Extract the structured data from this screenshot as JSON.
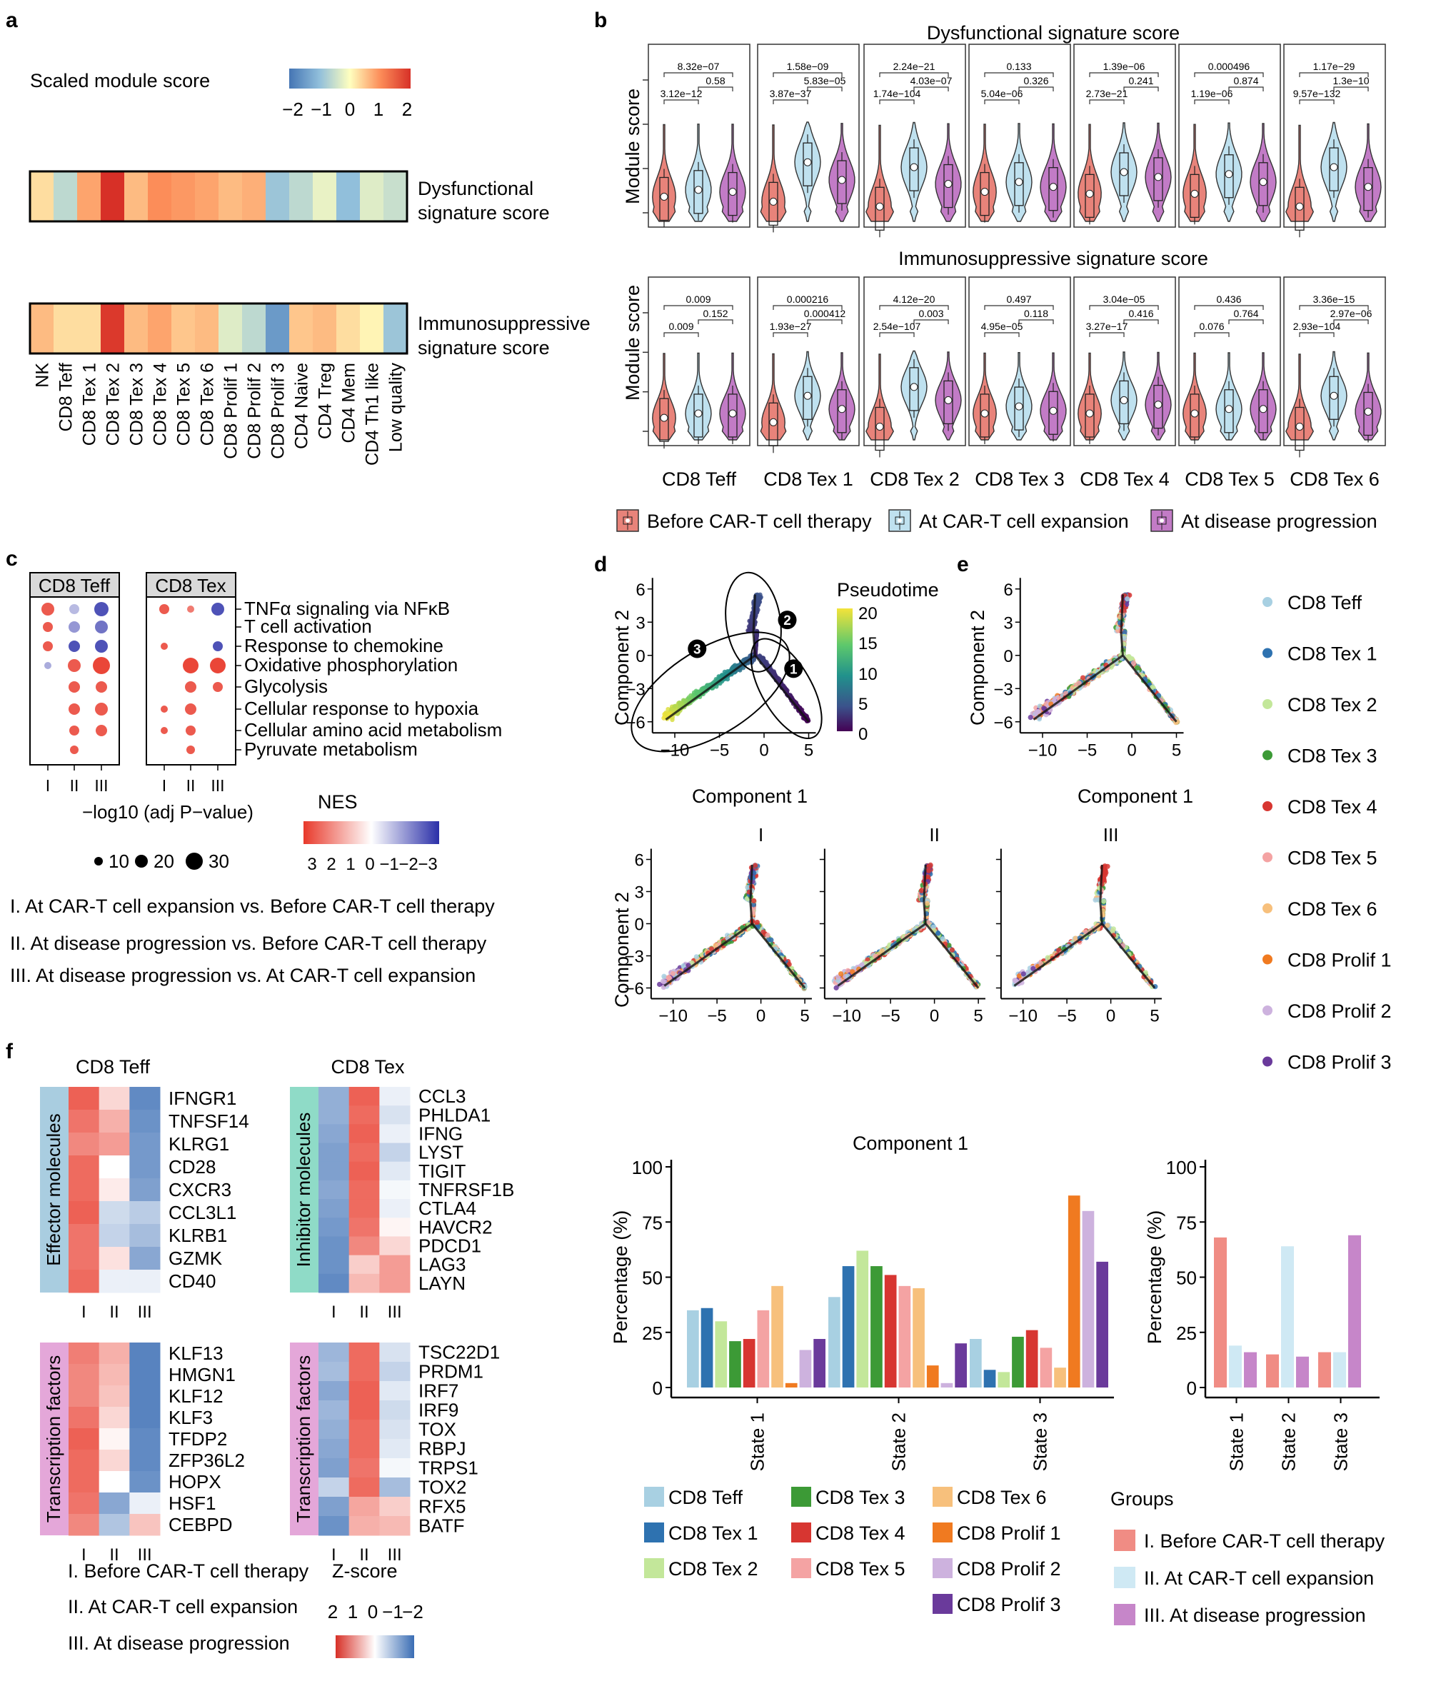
{
  "panel_letters": {
    "a": "a",
    "b": "b",
    "c": "c",
    "d": "d",
    "e": "e",
    "f": "f"
  },
  "colors": {
    "before": "#E8837A",
    "expansion": "#BFE1EF",
    "progression": "#C27BC6",
    "bar_before": "#F08C84",
    "bar_expansion": "#CFE9F4",
    "bar_progression": "#C686C9"
  },
  "panel_a": {
    "scale_title": "Scaled module score",
    "scale_ticks": [
      "−2",
      "−1",
      "0",
      "1",
      "2"
    ],
    "row1_label": [
      "Dysfunctional",
      "signature score"
    ],
    "row2_label": [
      "Immunosuppressive",
      "signature score"
    ],
    "clusters": [
      "NK",
      "CD8 Teff",
      "CD8 Tex 1",
      "CD8 Tex 2",
      "CD8 Tex 3",
      "CD8 Tex 4",
      "CD8 Tex 5",
      "CD8 Tex 6",
      "CD8 Prolif 1",
      "CD8 Prolif 2",
      "CD8 Prolif 3",
      "CD4 Naive",
      "CD4 Treg",
      "CD4 Mem",
      "CD4 Th1 like",
      "Low quality"
    ],
    "dysfunctional": [
      0.3,
      -0.6,
      0.8,
      2.0,
      0.6,
      1.0,
      0.9,
      0.8,
      0.6,
      0.7,
      -0.9,
      -0.6,
      -0.2,
      -1.0,
      -0.3,
      -0.5
    ],
    "immunosuppressive": [
      0.6,
      0.3,
      0.3,
      1.9,
      0.6,
      0.8,
      0.5,
      0.6,
      -0.3,
      -0.6,
      -1.5,
      0.5,
      0.6,
      0.3,
      0.1,
      -0.9
    ]
  },
  "panel_b": {
    "title_top": "Dysfunctional signature score",
    "title_bottom": "Immunosuppressive signature score",
    "ylabel": "Module score",
    "panels": [
      "CD8 Teff",
      "CD8 Tex 1",
      "CD8 Tex 2",
      "CD8 Tex 3",
      "CD8 Tex 4",
      "CD8 Tex 5",
      "CD8 Tex 6"
    ],
    "pvals_top": [
      [
        "8.32e−07",
        "0.58",
        "3.12e−12"
      ],
      [
        "1.58e−09",
        "5.83e−05",
        "3.87e−37"
      ],
      [
        "2.24e−21",
        "4.03e−07",
        "1.74e−104"
      ],
      [
        "0.133",
        "0.326",
        "5.04e−06"
      ],
      [
        "1.39e−06",
        "0.241",
        "2.73e−21"
      ],
      [
        "0.000496",
        "0.874",
        "1.19e−06"
      ],
      [
        "1.17e−29",
        "1.3e−10",
        "9.57e−132"
      ]
    ],
    "pvals_bottom": [
      [
        "0.009",
        "0.152",
        "0.009"
      ],
      [
        "0.000216",
        "0.000412",
        "1.93e−27"
      ],
      [
        "4.12e−20",
        "0.003",
        "2.54e−107"
      ],
      [
        "0.497",
        "0.118",
        "4.95e−05"
      ],
      [
        "3.04e−05",
        "0.416",
        "3.27e−17"
      ],
      [
        "0.436",
        "0.764",
        "0.076"
      ],
      [
        "3.36e−15",
        "2.97e−06",
        "2.93e−104"
      ]
    ],
    "medians_top": [
      [
        0.25,
        0.32,
        0.3
      ],
      [
        0.2,
        0.6,
        0.42
      ],
      [
        0.15,
        0.55,
        0.38
      ],
      [
        0.3,
        0.4,
        0.35
      ],
      [
        0.28,
        0.5,
        0.45
      ],
      [
        0.28,
        0.48,
        0.4
      ],
      [
        0.15,
        0.55,
        0.35
      ]
    ],
    "medians_bottom": [
      [
        0.25,
        0.3,
        0.3
      ],
      [
        0.2,
        0.5,
        0.35
      ],
      [
        0.15,
        0.6,
        0.45
      ],
      [
        0.3,
        0.38,
        0.33
      ],
      [
        0.3,
        0.45,
        0.4
      ],
      [
        0.3,
        0.35,
        0.35
      ],
      [
        0.15,
        0.5,
        0.32
      ]
    ],
    "legend": [
      "Before CAR-T cell therapy",
      "At CAR-T cell expansion",
      "At disease progression"
    ]
  },
  "panel_c": {
    "headers": [
      "CD8 Teff",
      "CD8 Tex"
    ],
    "pathways": [
      "TNFα signaling via NFκB",
      "T cell activation",
      "Response to chemokine",
      "Oxidative phosphorylation",
      "Glycolysis",
      "Cellular response to hypoxia",
      "Cellular amino acid metabolism",
      "Pyruvate metabolism"
    ],
    "xticks": [
      "I",
      "II",
      "III"
    ],
    "teff_dots": [
      [
        3,
        0,
        1
      ],
      [
        0,
        1,
        2
      ],
      [
        0,
        0,
        2
      ],
      [
        3,
        -2,
        -2
      ],
      [
        1,
        3,
        3
      ],
      [
        4,
        3,
        2
      ],
      [
        5,
        2,
        2
      ],
      [
        6,
        1,
        -1
      ],
      [
        7,
        1,
        -1
      ],
      [
        0,
        0,
        -3
      ],
      [
        1,
        0,
        -2
      ],
      [
        2,
        0,
        -2
      ],
      [
        3,
        0,
        -1
      ],
      [
        4,
        0,
        -1
      ],
      [
        5,
        0,
        -1
      ],
      [
        6,
        0,
        0
      ],
      [
        7,
        -1,
        -1
      ],
      [
        0,
        2,
        -2
      ],
      [
        1,
        -1,
        0
      ],
      [
        2,
        -1,
        0
      ],
      [
        3,
        2,
        -2
      ],
      [
        4,
        -1,
        0
      ]
    ],
    "size_label": "−log10  (adj P−value)",
    "size_ticks": [
      "10",
      "20",
      "30"
    ],
    "nes_label": "NES",
    "nes_ticks": [
      "3",
      "2",
      "1",
      "0",
      "−1",
      "−2",
      "−3"
    ],
    "comparisons": [
      "I. At CAR-T cell expansion vs. Before CAR-T cell therapy",
      "II. At disease progression vs. Before CAR-T cell therapy",
      "III. At disease progression vs. At CAR-T cell expansion"
    ]
  },
  "panel_d": {
    "ylabel": "Component 2",
    "xlabel": "Component 1",
    "colorbar_title": "Pseudotime",
    "colorbar_ticks": [
      "20",
      "15",
      "10",
      "5",
      "0"
    ],
    "states": [
      "1",
      "2",
      "3"
    ],
    "yticks": [
      "6",
      "3",
      "0",
      "−3",
      "−6"
    ],
    "xticks": [
      "−10",
      "−5",
      "0",
      "5"
    ],
    "sub_titles": [
      "I",
      "II",
      "III"
    ]
  },
  "panel_e": {
    "ylabel": "Component 2",
    "xlabel": "Component 1",
    "legend": [
      "CD8 Teff",
      "CD8 Tex 1",
      "CD8 Tex 2",
      "CD8 Tex 3",
      "CD8 Tex 4",
      "CD8 Tex 5",
      "CD8 Tex 6",
      "CD8 Prolif 1",
      "CD8 Prolif 2",
      "CD8 Prolif 3"
    ],
    "legend_colors": [
      "#A8D0E2",
      "#2E72B0",
      "#C3E79A",
      "#3C9A36",
      "#D73631",
      "#F4A3A3",
      "#F7C07C",
      "#F07A20",
      "#CDB2DE",
      "#6A3A9B"
    ]
  },
  "chart_data": [
    {
      "type": "bar",
      "ylabel": "Percentage (%)",
      "ylim": [
        0,
        100
      ],
      "yticks": [
        "100",
        "75",
        "50",
        "25",
        "0"
      ],
      "categories": [
        "State 1",
        "State 2",
        "State 3"
      ],
      "series": [
        {
          "name": "CD8 Teff",
          "values": [
            35,
            41,
            22
          ]
        },
        {
          "name": "CD8 Tex 1",
          "values": [
            36,
            55,
            8
          ]
        },
        {
          "name": "CD8 Tex 2",
          "values": [
            30,
            62,
            7
          ]
        },
        {
          "name": "CD8 Tex 3",
          "values": [
            21,
            55,
            23
          ]
        },
        {
          "name": "CD8 Tex 4",
          "values": [
            22,
            51,
            26
          ]
        },
        {
          "name": "CD8 Tex 5",
          "values": [
            35,
            46,
            18
          ]
        },
        {
          "name": "CD8 Tex 6",
          "values": [
            46,
            45,
            9
          ]
        },
        {
          "name": "CD8 Prolif 1",
          "values": [
            2,
            10,
            87
          ]
        },
        {
          "name": "CD8 Prolif 2",
          "values": [
            17,
            2,
            80
          ]
        },
        {
          "name": "CD8 Prolif 3",
          "values": [
            22,
            20,
            57
          ]
        }
      ]
    },
    {
      "type": "bar",
      "ylabel": "Percentage (%)",
      "ylim": [
        0,
        100
      ],
      "yticks": [
        "100",
        "75",
        "50",
        "25",
        "0"
      ],
      "categories": [
        "State 1",
        "State 2",
        "State 3"
      ],
      "legend_title": "Groups",
      "series": [
        {
          "name": "I. Before CAR-T cell therapy",
          "values": [
            68,
            15,
            16
          ]
        },
        {
          "name": "II. At CAR-T cell expansion",
          "values": [
            19,
            64,
            16
          ]
        },
        {
          "name": "III. At disease progression",
          "values": [
            16,
            14,
            69
          ]
        }
      ]
    }
  ],
  "panel_f": {
    "teff_title": "CD8 Teff",
    "tex_title": "CD8 Tex",
    "effector_label": "Effector molecules",
    "inhibitor_label": "Inhibitor molecules",
    "tf_label": "Transcription factors",
    "teff_genes": [
      "IFNGR1",
      "TNFSF14",
      "KLRG1",
      "CD28",
      "CXCR3",
      "CCL3L1",
      "KLRB1",
      "GZMK",
      "CD40"
    ],
    "teff_z": [
      [
        1.6,
        0.4,
        -1.6
      ],
      [
        1.4,
        0.8,
        -1.5
      ],
      [
        1.2,
        1.0,
        -1.4
      ],
      [
        1.5,
        0.0,
        -1.4
      ],
      [
        1.5,
        0.2,
        -1.3
      ],
      [
        1.6,
        -0.5,
        -0.7
      ],
      [
        1.4,
        -0.6,
        -0.9
      ],
      [
        1.4,
        0.3,
        -1.2
      ],
      [
        1.5,
        -0.2,
        -0.2
      ]
    ],
    "tex_genes": [
      "CCL3",
      "PHLDA1",
      "IFNG",
      "LYST",
      "TIGIT",
      "TNFRSF1B",
      "CTLA4",
      "HAVCR2",
      "PDCD1",
      "LAG3",
      "LAYN"
    ],
    "tex_z": [
      [
        -1.1,
        1.6,
        -0.2
      ],
      [
        -1.1,
        1.5,
        -0.4
      ],
      [
        -1.2,
        1.6,
        -0.2
      ],
      [
        -1.3,
        1.5,
        -0.6
      ],
      [
        -1.3,
        1.6,
        -0.3
      ],
      [
        -1.2,
        1.5,
        -0.1
      ],
      [
        -1.3,
        1.5,
        -0.2
      ],
      [
        -1.4,
        1.4,
        0.1
      ],
      [
        -1.5,
        1.2,
        0.4
      ],
      [
        -1.5,
        0.5,
        1.0
      ],
      [
        -1.6,
        0.7,
        1.0
      ]
    ],
    "teff_tf_genes": [
      "KLF13",
      "HMGN1",
      "KLF12",
      "KLF3",
      "TFDP2",
      "ZFP36L2",
      "HOPX",
      "HSF1",
      "CEBPD"
    ],
    "teff_tf_z": [
      [
        1.3,
        0.8,
        -1.7
      ],
      [
        1.2,
        0.7,
        -1.7
      ],
      [
        1.2,
        0.6,
        -1.7
      ],
      [
        1.4,
        0.4,
        -1.7
      ],
      [
        1.6,
        0.1,
        -1.6
      ],
      [
        1.5,
        0.4,
        -1.6
      ],
      [
        1.5,
        0.0,
        -1.5
      ],
      [
        1.4,
        -1.2,
        -0.2
      ],
      [
        1.2,
        -0.8,
        0.6
      ]
    ],
    "tex_tf_genes": [
      "TSC22D1",
      "PRDM1",
      "IRF7",
      "IRF9",
      "TOX",
      "RBPJ",
      "TRPS1",
      "TOX2",
      "RFX5",
      "BATF"
    ],
    "tex_tf_z": [
      [
        -1.0,
        1.5,
        -0.4
      ],
      [
        -0.9,
        1.5,
        -0.6
      ],
      [
        -1.2,
        1.6,
        -0.3
      ],
      [
        -1.0,
        1.6,
        -0.5
      ],
      [
        -1.1,
        1.5,
        -0.4
      ],
      [
        -1.2,
        1.5,
        -0.3
      ],
      [
        -1.3,
        1.4,
        -0.1
      ],
      [
        -0.6,
        1.5,
        -0.9
      ],
      [
        -1.3,
        0.9,
        0.5
      ],
      [
        -1.5,
        0.8,
        0.7
      ]
    ],
    "xticks": [
      "I",
      "II",
      "III"
    ],
    "group_legend": [
      "I. Before CAR-T cell therapy",
      "II. At CAR-T cell expansion",
      "III. At disease progression"
    ],
    "z_title": "Z-score",
    "z_ticks": [
      "2",
      "1",
      "0",
      "−1",
      "−2"
    ]
  }
}
